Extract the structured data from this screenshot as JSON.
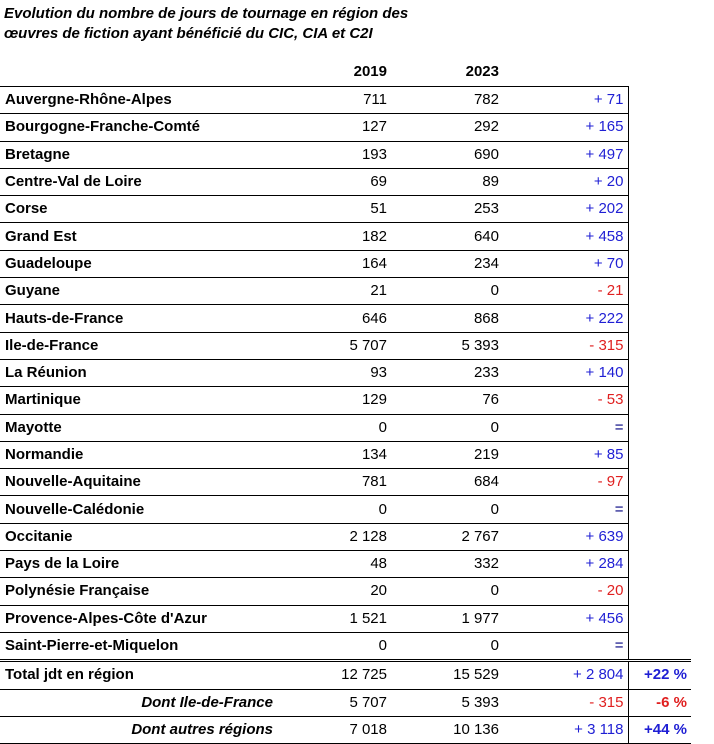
{
  "title": {
    "line1": "Evolution du nombre de jours de tournage en région des",
    "line2": "œuvres de fiction ayant bénéficié du CIC, CIA et C2I"
  },
  "headers": {
    "year1": "2019",
    "year2": "2023"
  },
  "colors": {
    "positive": "#1f1fd4",
    "negative": "#e02020"
  },
  "rows": [
    {
      "region": "Auvergne-Rhône-Alpes",
      "v2019": "711",
      "v2023": "782",
      "delta": "+ 71",
      "sign": "pos"
    },
    {
      "region": "Bourgogne-Franche-Comté",
      "v2019": "127",
      "v2023": "292",
      "delta": "+ 165",
      "sign": "pos"
    },
    {
      "region": "Bretagne",
      "v2019": "193",
      "v2023": "690",
      "delta": "+ 497",
      "sign": "pos"
    },
    {
      "region": "Centre-Val de Loire",
      "v2019": "69",
      "v2023": "89",
      "delta": "+ 20",
      "sign": "pos"
    },
    {
      "region": "Corse",
      "v2019": "51",
      "v2023": "253",
      "delta": "+ 202",
      "sign": "pos"
    },
    {
      "region": "Grand Est",
      "v2019": "182",
      "v2023": "640",
      "delta": "+ 458",
      "sign": "pos"
    },
    {
      "region": "Guadeloupe",
      "v2019": "164",
      "v2023": "234",
      "delta": "+ 70",
      "sign": "pos"
    },
    {
      "region": "Guyane",
      "v2019": "21",
      "v2023": "0",
      "delta": "- 21",
      "sign": "neg"
    },
    {
      "region": "Hauts-de-France",
      "v2019": "646",
      "v2023": "868",
      "delta": "+ 222",
      "sign": "pos"
    },
    {
      "region": "Ile-de-France",
      "v2019": "5 707",
      "v2023": "5 393",
      "delta": "- 315",
      "sign": "neg"
    },
    {
      "region": "La Réunion",
      "v2019": "93",
      "v2023": "233",
      "delta": "+ 140",
      "sign": "pos"
    },
    {
      "region": "Martinique",
      "v2019": "129",
      "v2023": "76",
      "delta": "- 53",
      "sign": "neg"
    },
    {
      "region": "Mayotte",
      "v2019": "0",
      "v2023": "0",
      "delta": "=",
      "sign": "eq"
    },
    {
      "region": "Normandie",
      "v2019": "134",
      "v2023": "219",
      "delta": "+ 85",
      "sign": "pos"
    },
    {
      "region": "Nouvelle-Aquitaine",
      "v2019": "781",
      "v2023": "684",
      "delta": "- 97",
      "sign": "neg"
    },
    {
      "region": "Nouvelle-Calédonie",
      "v2019": "0",
      "v2023": "0",
      "delta": "=",
      "sign": "eq"
    },
    {
      "region": "Occitanie",
      "v2019": "2 128",
      "v2023": "2 767",
      "delta": "+ 639",
      "sign": "pos"
    },
    {
      "region": "Pays de la Loire",
      "v2019": "48",
      "v2023": "332",
      "delta": "+ 284",
      "sign": "pos"
    },
    {
      "region": "Polynésie Française",
      "v2019": "20",
      "v2023": "0",
      "delta": "- 20",
      "sign": "neg"
    },
    {
      "region": "Provence-Alpes-Côte d'Azur",
      "v2019": "1 521",
      "v2023": "1 977",
      "delta": "+ 456",
      "sign": "pos"
    },
    {
      "region": "Saint-Pierre-et-Miquelon",
      "v2019": "0",
      "v2023": "0",
      "delta": "=",
      "sign": "eq"
    }
  ],
  "summary": [
    {
      "label": "Total jdt en région",
      "v2019": "12 725",
      "v2023": "15 529",
      "delta": "+ 2 804",
      "sign": "pos",
      "pct": "+22 %",
      "kind": "total"
    },
    {
      "label": "Dont Ile-de-France",
      "v2019": "5 707",
      "v2023": "5 393",
      "delta": "- 315",
      "sign": "neg",
      "pct": "-6 %",
      "kind": "sub"
    },
    {
      "label": "Dont autres régions",
      "v2019": "7 018",
      "v2023": "10 136",
      "delta": "+ 3 118",
      "sign": "pos",
      "pct": "+44 %",
      "kind": "sub last"
    }
  ]
}
